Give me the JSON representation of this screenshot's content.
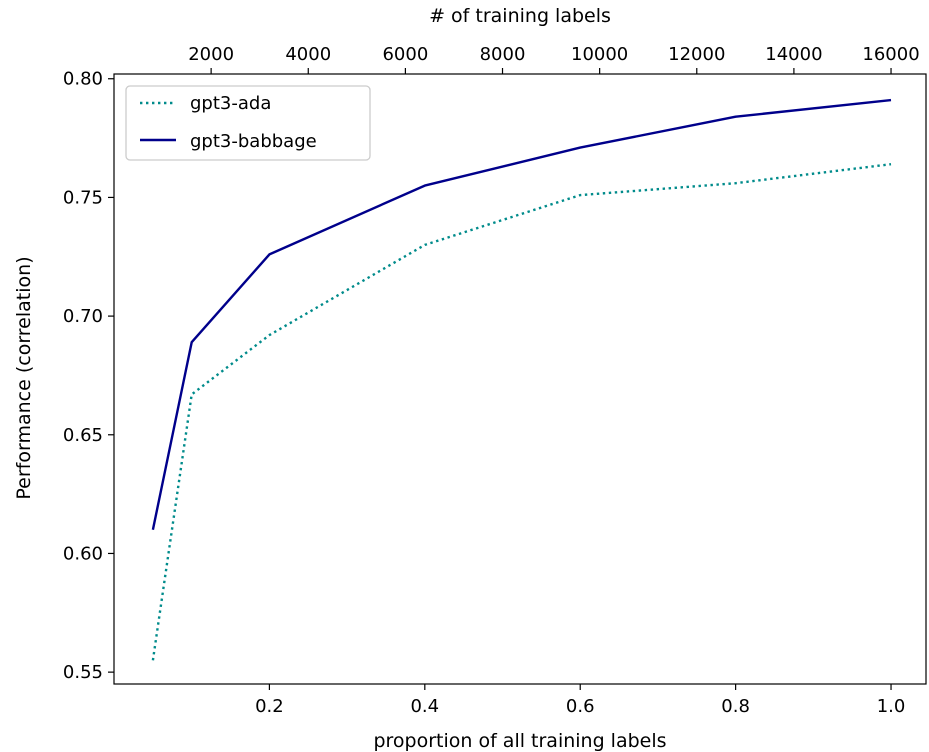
{
  "chart_data": {
    "type": "line",
    "xlabel": "proportion of all training labels",
    "ylabel": "Performance (correlation)",
    "top_xlabel": "# of training labels",
    "xlim": [
      0.0,
      1.045
    ],
    "ylim": [
      0.545,
      0.802
    ],
    "top_xlim": [
      0,
      16720
    ],
    "x_ticks": [
      0.2,
      0.4,
      0.6,
      0.8,
      1.0
    ],
    "x_tick_labels": [
      "0.2",
      "0.4",
      "0.6",
      "0.8",
      "1.0"
    ],
    "y_ticks": [
      0.55,
      0.6,
      0.65,
      0.7,
      0.75,
      0.8
    ],
    "y_tick_labels": [
      "0.55",
      "0.60",
      "0.65",
      "0.70",
      "0.75",
      "0.80"
    ],
    "top_x_ticks": [
      2000,
      4000,
      6000,
      8000,
      10000,
      12000,
      14000,
      16000
    ],
    "top_x_tick_labels": [
      "2000",
      "4000",
      "6000",
      "8000",
      "10000",
      "12000",
      "14000",
      "16000"
    ],
    "legend_position": "top-left",
    "grid": false,
    "series": [
      {
        "name": "gpt3-ada",
        "color": "#008b8b",
        "style": "dotted",
        "x": [
          0.05,
          0.1,
          0.2,
          0.4,
          0.6,
          0.8,
          1.0
        ],
        "y": [
          0.555,
          0.667,
          0.692,
          0.73,
          0.751,
          0.756,
          0.764
        ]
      },
      {
        "name": "gpt3-babbage",
        "color": "#00008b",
        "style": "solid",
        "x": [
          0.05,
          0.1,
          0.2,
          0.4,
          0.6,
          0.8,
          1.0
        ],
        "y": [
          0.61,
          0.689,
          0.726,
          0.755,
          0.771,
          0.784,
          0.791
        ]
      }
    ]
  }
}
